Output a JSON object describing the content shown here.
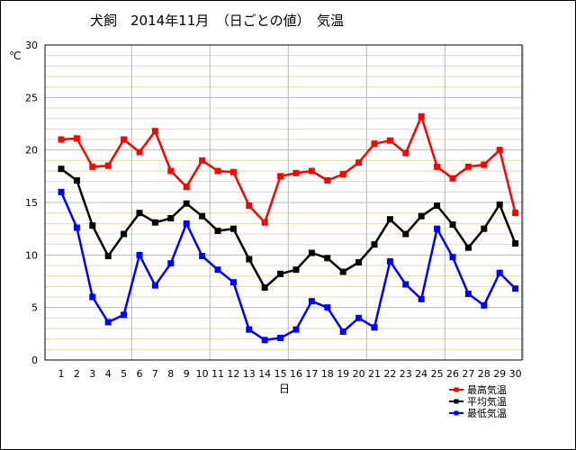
{
  "chart_data": {
    "type": "line",
    "title": "犬飼　2014年11月　（日ごとの値）　気温",
    "xlabel": "日",
    "ylabel": "℃",
    "ylim": [
      0,
      30
    ],
    "yticks": [
      0,
      5,
      10,
      15,
      20,
      25,
      30
    ],
    "x": [
      1,
      2,
      3,
      4,
      5,
      6,
      7,
      8,
      9,
      10,
      11,
      12,
      13,
      14,
      15,
      16,
      17,
      18,
      19,
      20,
      21,
      22,
      23,
      24,
      25,
      26,
      27,
      28,
      29,
      30
    ],
    "grid": true,
    "legend_position": "bottom-right",
    "series": [
      {
        "name": "最高気温",
        "color": "#ff0000",
        "values": [
          21.0,
          21.1,
          18.4,
          18.5,
          21.0,
          19.8,
          21.8,
          18.0,
          16.5,
          19.0,
          18.0,
          17.9,
          14.7,
          13.1,
          17.5,
          17.8,
          18.0,
          17.1,
          17.7,
          18.8,
          20.6,
          20.9,
          19.7,
          23.2,
          18.4,
          17.3,
          18.4,
          18.6,
          20.0,
          14.0
        ]
      },
      {
        "name": "平均気温",
        "color": "#000000",
        "values": [
          18.2,
          17.1,
          12.8,
          9.9,
          12.0,
          14.0,
          13.1,
          13.5,
          14.9,
          13.7,
          12.3,
          12.5,
          9.6,
          6.9,
          8.2,
          8.6,
          10.2,
          9.7,
          8.4,
          9.3,
          11.0,
          13.4,
          12.0,
          13.7,
          14.7,
          12.9,
          10.7,
          12.5,
          14.8,
          11.1
        ]
      },
      {
        "name": "最低気温",
        "color": "#0000ff",
        "values": [
          16.0,
          12.6,
          6.0,
          3.6,
          4.3,
          10.0,
          7.1,
          9.2,
          13.0,
          9.9,
          8.6,
          7.4,
          2.9,
          1.9,
          2.1,
          2.9,
          5.6,
          5.0,
          2.7,
          4.0,
          3.1,
          9.4,
          7.2,
          5.8,
          12.5,
          9.8,
          6.3,
          5.2,
          8.3,
          6.8
        ]
      }
    ]
  }
}
